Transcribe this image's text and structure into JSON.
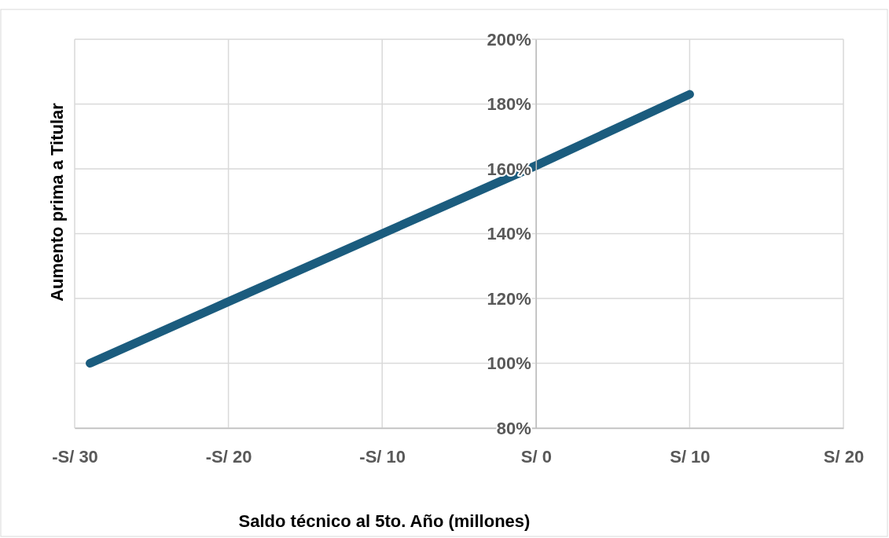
{
  "chart_data": {
    "type": "line",
    "xlabel": "Saldo técnico  al 5to. Año (millones)",
    "ylabel": "Aumento prima a Titular",
    "x": [
      -29,
      -20,
      -10,
      0,
      10
    ],
    "series": [
      {
        "color": "#1b5c7e",
        "values": [
          100,
          119,
          140,
          161,
          183
        ]
      }
    ],
    "xlim": [
      -30,
      20
    ],
    "xticks": [
      {
        "value": -30,
        "label": "-S/ 30"
      },
      {
        "value": -20,
        "label": "-S/ 20"
      },
      {
        "value": -10,
        "label": "-S/ 10"
      },
      {
        "value": 0,
        "label": "S/ 0"
      },
      {
        "value": 10,
        "label": "S/ 10"
      },
      {
        "value": 20,
        "label": "S/ 20"
      }
    ],
    "ylim": [
      80,
      200
    ],
    "yticks": [
      {
        "value": 80,
        "label": "80%"
      },
      {
        "value": 100,
        "label": "100%"
      },
      {
        "value": 120,
        "label": "120%"
      },
      {
        "value": 140,
        "label": "140%"
      },
      {
        "value": 160,
        "label": "160%"
      },
      {
        "value": 180,
        "label": "180%"
      },
      {
        "value": 200,
        "label": "200%"
      }
    ],
    "grid": true,
    "marker": "none",
    "line_style": "solid"
  }
}
